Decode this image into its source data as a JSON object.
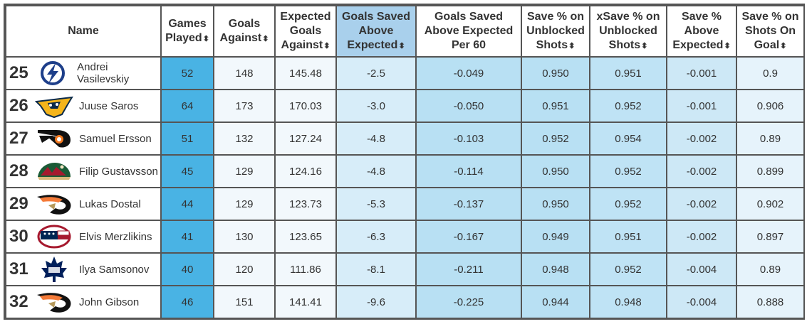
{
  "headers": {
    "name": "Name",
    "games_played": "Games Played",
    "goals_against": "Goals Against",
    "expected_goals_against": "Expected Goals Against",
    "gsae": "Goals Saved Above Expected",
    "gsae_per60": "Goals Saved Above Expected Per 60",
    "save_pct_unblocked": "Save % on Unblocked Shots",
    "xsave_pct_unblocked": "xSave % on Unblocked Shots",
    "save_pct_above_expected": "Save % Above Expected",
    "save_pct_sog": "Save % on Shots On Goal",
    "sort_icon": "⬍"
  },
  "rows": [
    {
      "rank": "25",
      "name": "Andrei Vasilevskiy",
      "team_logo": "tampa-bay-lightning-logo-icon",
      "gp": "52",
      "ga": "148",
      "xga": "145.48",
      "gsae": "-2.5",
      "per60": "-0.049",
      "sv": "0.950",
      "xsv": "0.951",
      "svae": "-0.001",
      "sog": "0.9"
    },
    {
      "rank": "26",
      "name": "Juuse Saros",
      "team_logo": "nashville-predators-logo-icon",
      "gp": "64",
      "ga": "173",
      "xga": "170.03",
      "gsae": "-3.0",
      "per60": "-0.050",
      "sv": "0.951",
      "xsv": "0.952",
      "svae": "-0.001",
      "sog": "0.906"
    },
    {
      "rank": "27",
      "name": "Samuel Ersson",
      "team_logo": "philadelphia-flyers-logo-icon",
      "gp": "51",
      "ga": "132",
      "xga": "127.24",
      "gsae": "-4.8",
      "per60": "-0.103",
      "sv": "0.952",
      "xsv": "0.954",
      "svae": "-0.002",
      "sog": "0.89"
    },
    {
      "rank": "28",
      "name": "Filip Gustavsson",
      "team_logo": "minnesota-wild-logo-icon",
      "gp": "45",
      "ga": "129",
      "xga": "124.16",
      "gsae": "-4.8",
      "per60": "-0.114",
      "sv": "0.950",
      "xsv": "0.952",
      "svae": "-0.002",
      "sog": "0.899"
    },
    {
      "rank": "29",
      "name": "Lukas Dostal",
      "team_logo": "anaheim-ducks-logo-icon",
      "gp": "44",
      "ga": "129",
      "xga": "123.73",
      "gsae": "-5.3",
      "per60": "-0.137",
      "sv": "0.950",
      "xsv": "0.952",
      "svae": "-0.002",
      "sog": "0.902"
    },
    {
      "rank": "30",
      "name": "Elvis Merzlikins",
      "team_logo": "columbus-blue-jackets-logo-icon",
      "gp": "41",
      "ga": "130",
      "xga": "123.65",
      "gsae": "-6.3",
      "per60": "-0.167",
      "sv": "0.949",
      "xsv": "0.951",
      "svae": "-0.002",
      "sog": "0.897"
    },
    {
      "rank": "31",
      "name": "Ilya Samsonov",
      "team_logo": "toronto-maple-leafs-logo-icon",
      "gp": "40",
      "ga": "120",
      "xga": "111.86",
      "gsae": "-8.1",
      "per60": "-0.211",
      "sv": "0.948",
      "xsv": "0.952",
      "svae": "-0.004",
      "sog": "0.89"
    },
    {
      "rank": "32",
      "name": "John Gibson",
      "team_logo": "anaheim-ducks-logo-icon",
      "gp": "46",
      "ga": "151",
      "xga": "141.41",
      "gsae": "-9.6",
      "per60": "-0.225",
      "sv": "0.944",
      "xsv": "0.948",
      "svae": "-0.004",
      "sog": "0.888"
    }
  ]
}
